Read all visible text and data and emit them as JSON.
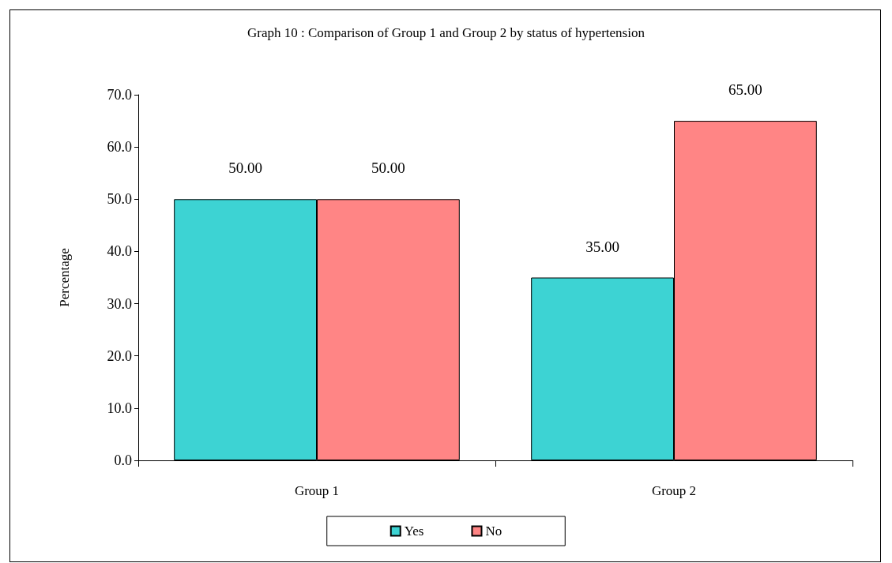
{
  "chart_data": {
    "type": "bar",
    "title": "Graph 10 : Comparison of Group 1 and Group 2 by status of hypertension",
    "ylabel": "Percentage",
    "categories": [
      "Group 1",
      "Group 2"
    ],
    "series": [
      {
        "name": "Yes",
        "color": "#3dd3d3",
        "values": [
          50,
          35
        ],
        "value_labels": [
          "50.00",
          "35.00"
        ]
      },
      {
        "name": "No",
        "color": "#ff8585",
        "values": [
          50,
          65
        ],
        "value_labels": [
          "50.00",
          "65.00"
        ]
      }
    ],
    "ylim": [
      0,
      70
    ],
    "yticks": [
      {
        "value": 0,
        "label": "0.0"
      },
      {
        "value": 10,
        "label": "10.0"
      },
      {
        "value": 20,
        "label": "20.0"
      },
      {
        "value": 30,
        "label": "30.0"
      },
      {
        "value": 40,
        "label": "40.0"
      },
      {
        "value": 50,
        "label": "50.0"
      },
      {
        "value": 60,
        "label": "60.0"
      },
      {
        "value": 70,
        "label": "70.0"
      }
    ],
    "grid": false,
    "legend": "bottom"
  }
}
